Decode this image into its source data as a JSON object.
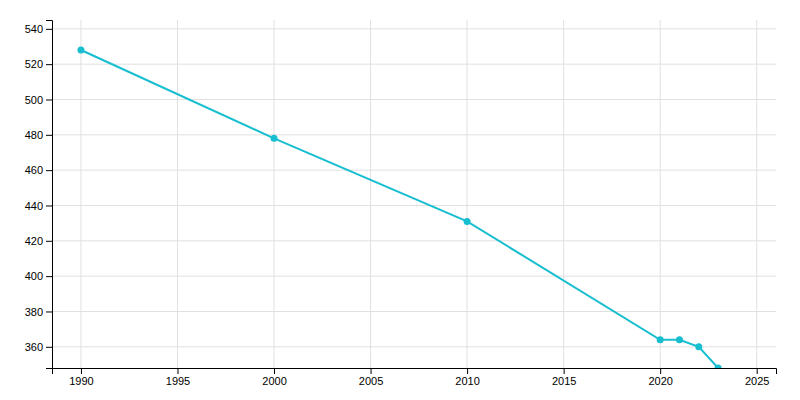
{
  "chart_data": {
    "type": "line",
    "x": [
      1990,
      2000,
      2010,
      2020,
      2021,
      2022,
      2023
    ],
    "values": [
      528,
      478,
      431,
      364,
      364,
      360,
      348
    ],
    "color": "#17becf",
    "marker": "circle",
    "xlim": [
      1988.5,
      2026
    ],
    "ylim": [
      348,
      545
    ],
    "xticks": [
      1990,
      1995,
      2000,
      2005,
      2010,
      2015,
      2020,
      2025
    ],
    "yticks": [
      360,
      380,
      400,
      420,
      440,
      460,
      480,
      500,
      520,
      540
    ],
    "grid": true
  }
}
